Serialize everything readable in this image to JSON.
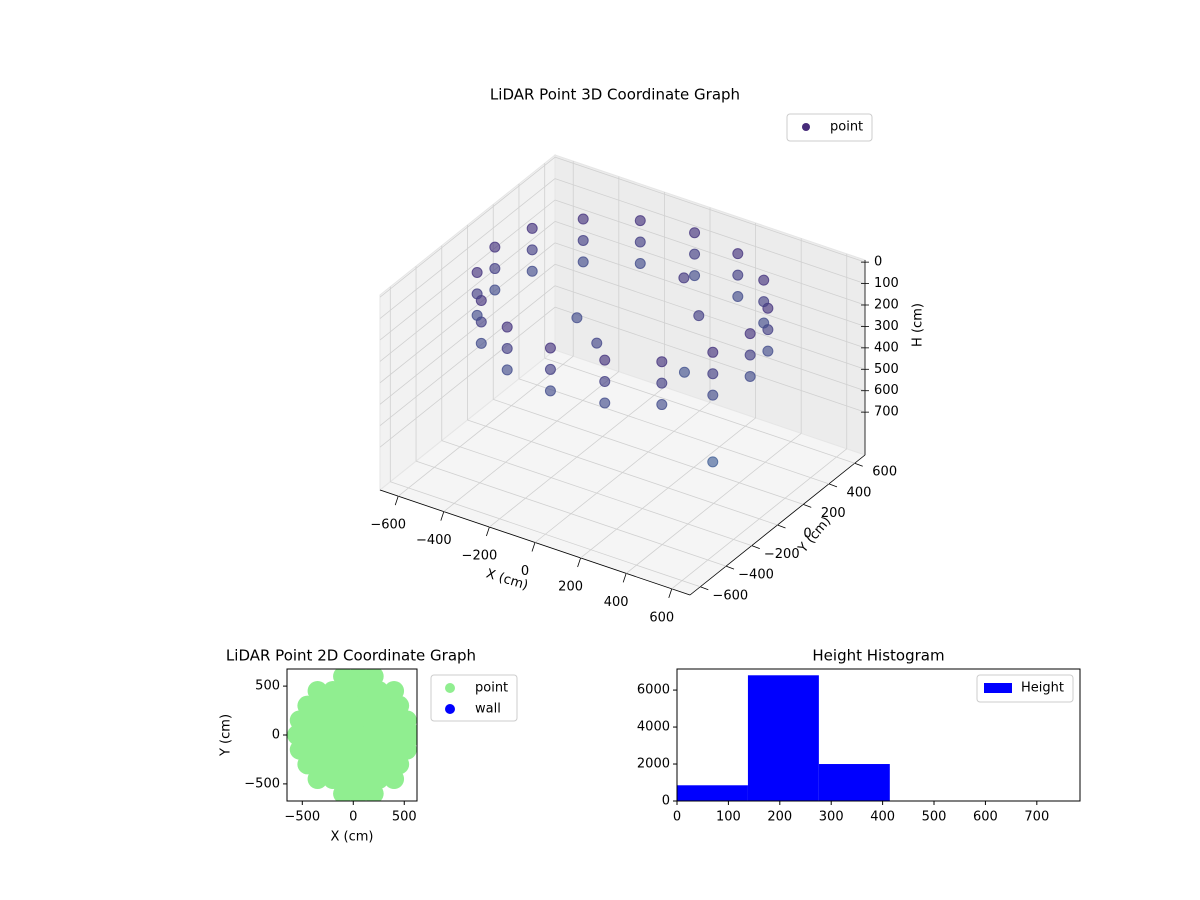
{
  "chart_data": [
    {
      "type": "scatter3d",
      "title": "LiDAR Point 3D Coordinate Graph",
      "xlabel": "X (cm)",
      "ylabel": "Y (cm)",
      "zlabel": "H (cm)",
      "xlim": [
        -680,
        680
      ],
      "ylim": [
        -680,
        680
      ],
      "zlim": [
        900,
        -10
      ],
      "xticks": [
        {
          "value": -600,
          "label": "−600"
        },
        {
          "value": -400,
          "label": "−400"
        },
        {
          "value": -200,
          "label": "−200"
        },
        0,
        200,
        400,
        600
      ],
      "yticks": [
        {
          "value": -600,
          "label": "−600"
        },
        {
          "value": -400,
          "label": "−400"
        },
        {
          "value": -200,
          "label": "−200"
        },
        0,
        200,
        400,
        600
      ],
      "zticks": [
        0,
        100,
        200,
        300,
        400,
        500,
        600,
        700
      ],
      "legend": "upper right",
      "series": [
        {
          "name": "point",
          "color": "#472c7a",
          "x": [
            560,
            517,
            396,
            214,
            0,
            -214,
            -396,
            -517,
            -560,
            -517,
            -396,
            -214,
            0,
            214,
            396,
            517,
            560,
            517,
            396,
            214,
            0,
            -214,
            -396,
            -517,
            -560,
            -517,
            -396,
            -214,
            0,
            214,
            396,
            517,
            560,
            517,
            396,
            214,
            0,
            -214,
            -396,
            -517,
            -560,
            -517,
            -396,
            -214,
            0,
            214,
            396,
            517,
            100,
            250,
            300,
            -200,
            0,
            650
          ],
          "y": [
            0,
            214,
            396,
            517,
            560,
            517,
            396,
            214,
            0,
            -214,
            -396,
            -517,
            -560,
            -517,
            -396,
            -214,
            0,
            214,
            396,
            517,
            560,
            517,
            396,
            214,
            0,
            -214,
            -396,
            -517,
            -560,
            -517,
            -396,
            -214,
            0,
            214,
            396,
            517,
            560,
            517,
            396,
            214,
            0,
            -214,
            -396,
            -517,
            -560,
            -517,
            -396,
            -214,
            300,
            150,
            -50,
            0,
            -200,
            -450
          ],
          "z": [
            50,
            50,
            50,
            50,
            50,
            50,
            50,
            50,
            50,
            50,
            50,
            50,
            50,
            50,
            50,
            50,
            150,
            150,
            150,
            150,
            150,
            150,
            150,
            150,
            150,
            150,
            150,
            150,
            150,
            150,
            150,
            150,
            250,
            250,
            250,
            250,
            250,
            250,
            250,
            250,
            250,
            250,
            250,
            250,
            250,
            250,
            250,
            250,
            100,
            150,
            300,
            250,
            200,
            400
          ]
        }
      ]
    },
    {
      "type": "scatter",
      "title": "LiDAR Point 2D Coordinate Graph",
      "xlabel": "X (cm)",
      "ylabel": "Y (cm)",
      "xlim": [
        -650,
        625
      ],
      "ylim": [
        -675,
        675
      ],
      "xticks": [
        {
          "value": -500,
          "label": "−500"
        },
        0,
        500
      ],
      "yticks": [
        {
          "value": -500,
          "label": "−500"
        },
        0,
        500
      ],
      "legend": "outside right",
      "series": [
        {
          "name": "point",
          "color": "#90ee90",
          "x": [
            -100,
            50,
            200,
            -350,
            -200,
            -50,
            100,
            250,
            400,
            -450,
            -300,
            -150,
            0,
            150,
            300,
            450,
            -525,
            -375,
            -225,
            -75,
            75,
            225,
            375,
            525,
            -550,
            -400,
            -250,
            -100,
            50,
            200,
            350,
            500,
            620,
            -525,
            -375,
            -225,
            -75,
            75,
            225,
            375,
            525,
            -450,
            -300,
            -150,
            0,
            150,
            300,
            450,
            -350,
            -200,
            -50,
            100,
            250,
            400,
            -100,
            50,
            200
          ],
          "y": [
            600,
            600,
            600,
            450,
            450,
            450,
            450,
            450,
            450,
            300,
            300,
            300,
            300,
            300,
            300,
            300,
            150,
            150,
            150,
            150,
            150,
            150,
            150,
            150,
            0,
            0,
            0,
            0,
            0,
            0,
            0,
            0,
            0,
            -150,
            -150,
            -150,
            -150,
            -150,
            -150,
            -150,
            -150,
            -300,
            -300,
            -300,
            -300,
            -300,
            -300,
            -300,
            -450,
            -450,
            -450,
            -450,
            -450,
            -450,
            -600,
            -600,
            -600
          ]
        },
        {
          "name": "wall",
          "color": "#0000ff",
          "x": [],
          "y": []
        }
      ]
    },
    {
      "type": "histogram",
      "title": "Height Histogram",
      "name": "Height",
      "color": "#0000ff",
      "bins": [
        0,
        138,
        276,
        414,
        552,
        690,
        784
      ],
      "values": [
        850,
        6800,
        2000,
        0,
        0,
        0
      ],
      "xlim": [
        0,
        784
      ],
      "ylim": [
        0,
        7140
      ],
      "xticks": [
        0,
        100,
        200,
        300,
        400,
        500,
        600,
        700
      ],
      "yticks": [
        0,
        2000,
        4000,
        6000
      ],
      "legend": "upper right"
    }
  ]
}
